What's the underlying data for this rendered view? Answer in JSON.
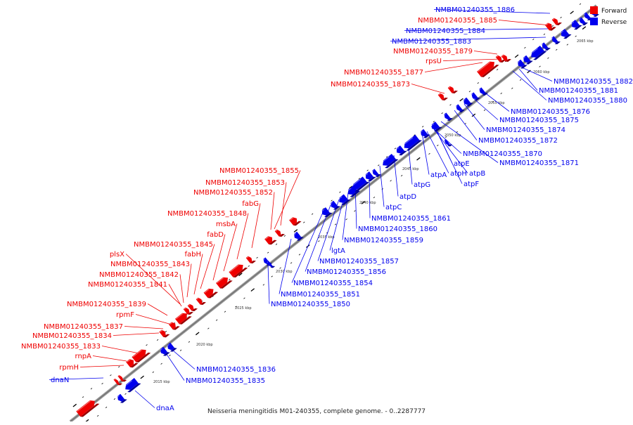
{
  "caption": "Neisseria meningitidis M01-240355, complete genome. - 0..2287777",
  "legend": [
    {
      "label": "Forward",
      "color": "#ee0000"
    },
    {
      "label": "Reverse",
      "color": "#0000ee"
    }
  ],
  "colors": {
    "forward": "#ee0000",
    "reverse": "#0000ee",
    "axis": "#999999",
    "ticks": "#000000"
  },
  "scale_labels": [
    "2015 kbp",
    "2020 kbp",
    "2025 kbp",
    "2030 kbp",
    "2035 kbp",
    "2040 kbp",
    "2045 kbp",
    "2050 kbp",
    "2055 kbp",
    "2060 kbp",
    "2065 kbp"
  ],
  "forward_labels": [
    "NMBM01240355_1885",
    "NMBM01240355_1879",
    "rpsU",
    "NMBM01240355_1877",
    "NMBM01240355_1873",
    "NMBM01240355_1855",
    "NMBM01240355_1853",
    "NMBM01240355_1852",
    "fabG",
    "NMBM01240355_1848",
    "msbA",
    "fabD",
    "NMBM01240355_1845",
    "fabH",
    "plsX",
    "NMBM01240355_1843",
    "NMBM01240355_1842",
    "NMBM01240355_1841",
    "NMBM01240355_1839",
    "rpmF",
    "NMBM01240355_1837",
    "NMBM01240355_1834",
    "NMBM01240355_1833",
    "rnpA",
    "rpmH"
  ],
  "reverse_labels": [
    "NMBM01240355_1886",
    "NMBM01240355_1884",
    "NMBM01240355_1883",
    "NMBM01240355_1882",
    "NMBM01240355_1881",
    "NMBM01240355_1880",
    "NMBM01240355_1876",
    "NMBM01240355_1875",
    "NMBM01240355_1874",
    "NMBM01240355_1872",
    "NMBM01240355_1870",
    "NMBM01240355_1871",
    "atpE",
    "atpA",
    "atpH",
    "atpB",
    "atpG",
    "atpF",
    "atpD",
    "atpC",
    "NMBM01240355_1861",
    "NMBM01240355_1860",
    "NMBM01240355_1859",
    "lgtA",
    "NMBM01240355_1857",
    "NMBM01240355_1856",
    "NMBM01240355_1854",
    "NMBM01240355_1851",
    "NMBM01240355_1850",
    "NMBM01240355_1836",
    "NMBM01240355_1835",
    "dnaN",
    "dnaA"
  ]
}
